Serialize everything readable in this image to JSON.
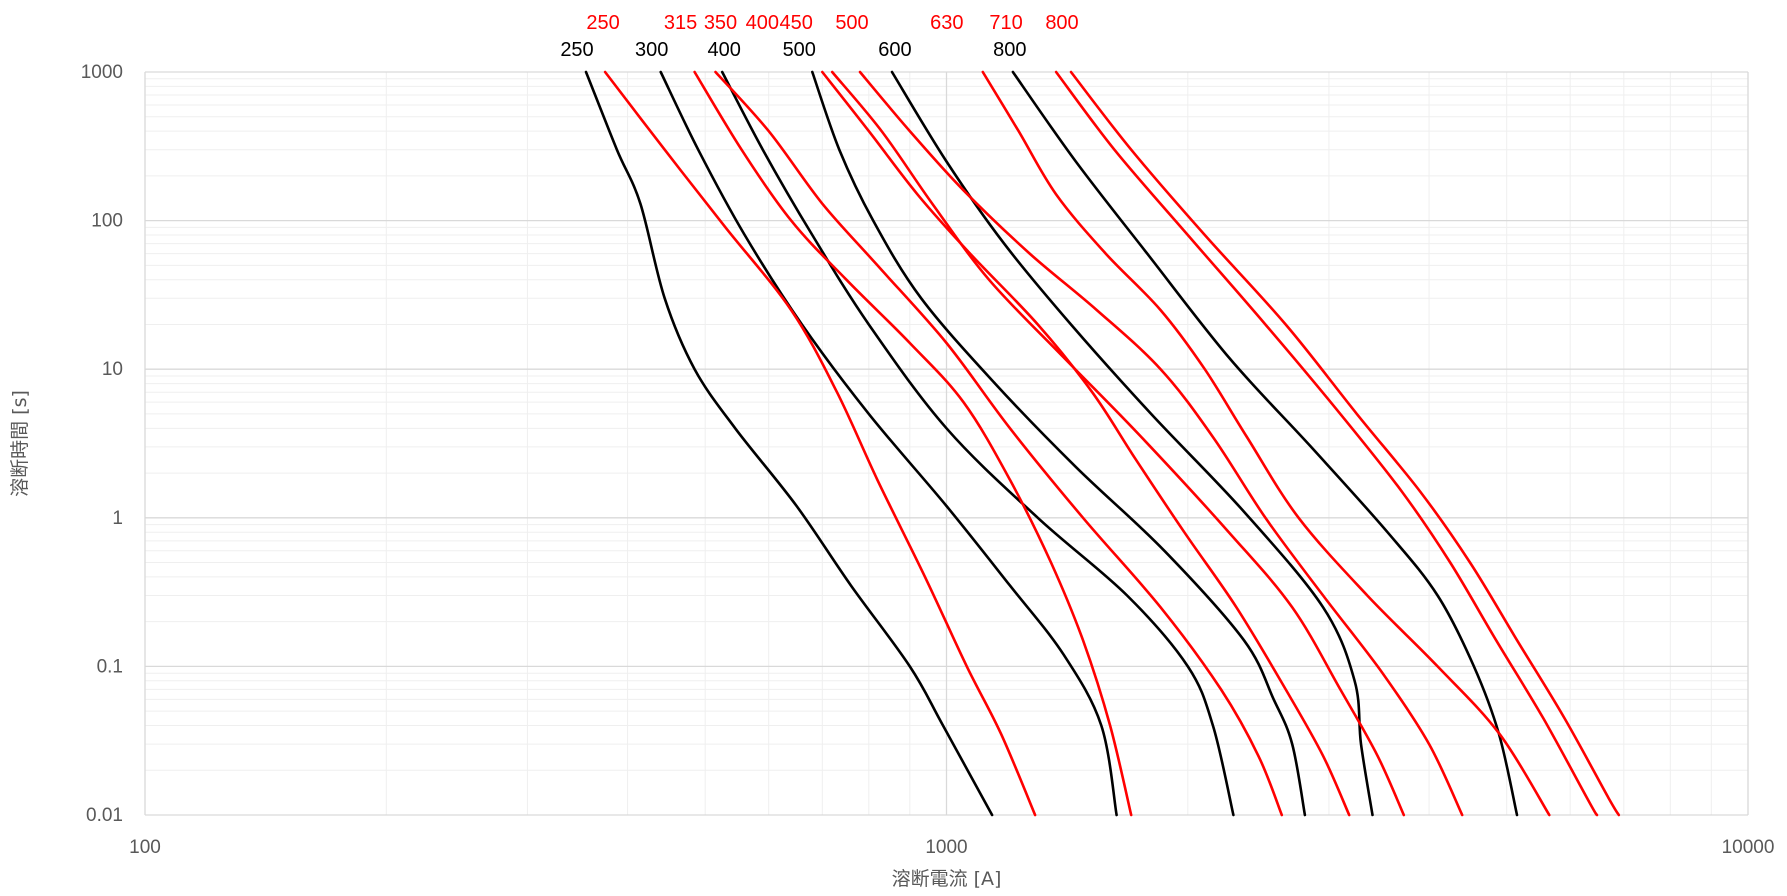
{
  "chart_data": {
    "type": "line",
    "xlabel": "溶断電流 [A]",
    "ylabel": "溶断時間 [s]",
    "xscale": "log",
    "yscale": "log",
    "xlim": [
      100,
      10000
    ],
    "ylim": [
      0.01,
      1000
    ],
    "grid": "major and minor",
    "legend": "none; curve ratings labeled above plot",
    "x_ticks": [
      "100",
      "1000",
      "10000"
    ],
    "y_ticks": [
      "1000",
      "100",
      "10",
      "1",
      "0.1",
      "0.01"
    ],
    "colors": {
      "black_series": "#000000",
      "red_series": "#ff0000"
    },
    "top_labels_red": [
      "250",
      "315",
      "350",
      "400",
      "450",
      "500",
      "630",
      "710",
      "800"
    ],
    "top_labels_black": [
      "250",
      "300",
      "400",
      "500",
      "600",
      "800"
    ],
    "series": [
      {
        "name": "250",
        "color": "#000000",
        "points": [
          [
            355,
            1000
          ],
          [
            388,
            300
          ],
          [
            415,
            130
          ],
          [
            445,
            30
          ],
          [
            485,
            10
          ],
          [
            545,
            4
          ],
          [
            650,
            1.2
          ],
          [
            760,
            0.35
          ],
          [
            900,
            0.1
          ],
          [
            990,
            0.04
          ],
          [
            1140,
            0.01
          ]
        ]
      },
      {
        "name": "300",
        "color": "#000000",
        "points": [
          [
            440,
            1000
          ],
          [
            490,
            300
          ],
          [
            560,
            80
          ],
          [
            660,
            20
          ],
          [
            800,
            5
          ],
          [
            1000,
            1.2
          ],
          [
            1200,
            0.35
          ],
          [
            1400,
            0.12
          ],
          [
            1560,
            0.04
          ],
          [
            1630,
            0.01
          ]
        ]
      },
      {
        "name": "400",
        "color": "#000000",
        "points": [
          [
            525,
            1000
          ],
          [
            590,
            300
          ],
          [
            680,
            80
          ],
          [
            800,
            20
          ],
          [
            1000,
            4
          ],
          [
            1300,
            1
          ],
          [
            1680,
            0.3
          ],
          [
            2000,
            0.1
          ],
          [
            2150,
            0.04
          ],
          [
            2280,
            0.01
          ]
        ]
      },
      {
        "name": "500",
        "color": "#000000",
        "points": [
          [
            680,
            1000
          ],
          [
            735,
            300
          ],
          [
            810,
            100
          ],
          [
            930,
            30
          ],
          [
            1150,
            8
          ],
          [
            1450,
            2.2
          ],
          [
            1870,
            0.6
          ],
          [
            2350,
            0.15
          ],
          [
            2560,
            0.06
          ],
          [
            2700,
            0.03
          ],
          [
            2800,
            0.01
          ]
        ]
      },
      {
        "name": "600",
        "color": "#000000",
        "points": [
          [
            855,
            1000
          ],
          [
            1000,
            250
          ],
          [
            1180,
            70
          ],
          [
            1430,
            20
          ],
          [
            1800,
            5
          ],
          [
            2350,
            1.1
          ],
          [
            2950,
            0.25
          ],
          [
            3230,
            0.08
          ],
          [
            3290,
            0.03
          ],
          [
            3400,
            0.01
          ]
        ]
      },
      {
        "name": "800",
        "color": "#000000",
        "points": [
          [
            1210,
            1000
          ],
          [
            1450,
            250
          ],
          [
            1780,
            60
          ],
          [
            2250,
            12
          ],
          [
            2850,
            3
          ],
          [
            3550,
            0.8
          ],
          [
            4100,
            0.3
          ],
          [
            4550,
            0.1
          ],
          [
            4890,
            0.035
          ],
          [
            5150,
            0.01
          ]
        ]
      },
      {
        "name": "250",
        "color": "#ff0000",
        "points": [
          [
            375,
            1000
          ],
          [
            445,
            300
          ],
          [
            530,
            90
          ],
          [
            640,
            25
          ],
          [
            730,
            7
          ],
          [
            820,
            1.8
          ],
          [
            940,
            0.4
          ],
          [
            1060,
            0.1
          ],
          [
            1170,
            0.035
          ],
          [
            1290,
            0.01
          ]
        ]
      },
      {
        "name": "315",
        "color": "#ff0000",
        "points": [
          [
            485,
            1000
          ],
          [
            555,
            300
          ],
          [
            640,
            100
          ],
          [
            750,
            40
          ],
          [
            900,
            15
          ],
          [
            1050,
            6
          ],
          [
            1200,
            1.8
          ],
          [
            1350,
            0.5
          ],
          [
            1480,
            0.15
          ],
          [
            1600,
            0.04
          ],
          [
            1700,
            0.01
          ]
        ]
      },
      {
        "name": "350",
        "color": "#ff0000",
        "points": [
          [
            515,
            1000
          ],
          [
            600,
            400
          ],
          [
            700,
            130
          ],
          [
            820,
            50
          ],
          [
            1000,
            15
          ],
          [
            1200,
            4
          ],
          [
            1480,
            1
          ],
          [
            1850,
            0.25
          ],
          [
            2200,
            0.07
          ],
          [
            2450,
            0.025
          ],
          [
            2620,
            0.01
          ]
        ]
      },
      {
        "name": "400",
        "color": "#ff0000",
        "points": [
          [
            700,
            1000
          ],
          [
            800,
            400
          ],
          [
            920,
            150
          ],
          [
            1070,
            60
          ],
          [
            1300,
            20
          ],
          [
            1520,
            7
          ],
          [
            1720,
            2.5
          ],
          [
            1980,
            0.8
          ],
          [
            2300,
            0.25
          ],
          [
            2650,
            0.07
          ],
          [
            2950,
            0.025
          ],
          [
            3180,
            0.01
          ]
        ]
      },
      {
        "name": "450",
        "color": "#ff0000",
        "points": [
          [
            720,
            1000
          ],
          [
            830,
            400
          ],
          [
            960,
            130
          ],
          [
            1130,
            40
          ],
          [
            1400,
            12
          ],
          [
            1750,
            3.5
          ],
          [
            2250,
            0.8
          ],
          [
            2700,
            0.25
          ],
          [
            3100,
            0.07
          ],
          [
            3450,
            0.025
          ],
          [
            3720,
            0.01
          ]
        ]
      },
      {
        "name": "500",
        "color": "#ff0000",
        "points": [
          [
            780,
            1000
          ],
          [
            900,
            400
          ],
          [
            1050,
            160
          ],
          [
            1270,
            60
          ],
          [
            1540,
            25
          ],
          [
            1850,
            10
          ],
          [
            2150,
            3.5
          ],
          [
            2500,
            1
          ],
          [
            2950,
            0.3
          ],
          [
            3500,
            0.09
          ],
          [
            4000,
            0.03
          ],
          [
            4400,
            0.01
          ]
        ]
      },
      {
        "name": "630",
        "color": "#ff0000",
        "points": [
          [
            1110,
            1000
          ],
          [
            1230,
            400
          ],
          [
            1370,
            150
          ],
          [
            1580,
            60
          ],
          [
            1850,
            25
          ],
          [
            2100,
            10
          ],
          [
            2370,
            3.5
          ],
          [
            2750,
            1
          ],
          [
            3350,
            0.3
          ],
          [
            4100,
            0.1
          ],
          [
            4900,
            0.035
          ],
          [
            5650,
            0.01
          ]
        ]
      },
      {
        "name": "710",
        "color": "#ff0000",
        "points": [
          [
            1370,
            1000
          ],
          [
            1620,
            300
          ],
          [
            2000,
            80
          ],
          [
            2500,
            20
          ],
          [
            3100,
            5
          ],
          [
            3700,
            1.5
          ],
          [
            4250,
            0.5
          ],
          [
            4850,
            0.15
          ],
          [
            5550,
            0.045
          ],
          [
            6350,
            0.012
          ],
          [
            6480,
            0.01
          ]
        ]
      },
      {
        "name": "800",
        "color": "#ff0000",
        "points": [
          [
            1430,
            1000
          ],
          [
            1700,
            300
          ],
          [
            2100,
            80
          ],
          [
            2650,
            20
          ],
          [
            3250,
            5
          ],
          [
            3900,
            1.5
          ],
          [
            4500,
            0.5
          ],
          [
            5150,
            0.15
          ],
          [
            5900,
            0.045
          ],
          [
            6700,
            0.013
          ],
          [
            6900,
            0.01
          ]
        ]
      }
    ]
  }
}
